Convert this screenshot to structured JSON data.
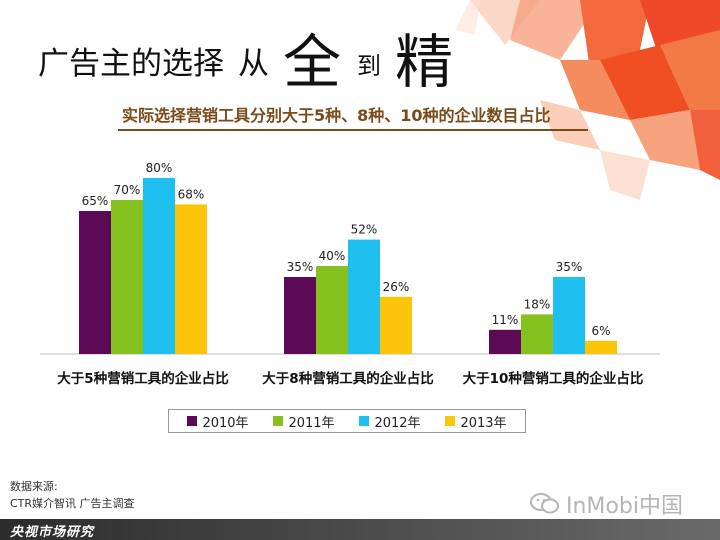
{
  "header": {
    "title_main": "广告主的选择",
    "title_from": "从",
    "title_quan": "全",
    "title_dao": "到",
    "title_jing": "精",
    "subtitle": "实际选择营销工具分别大于5种、8种、10种的企业数目占比"
  },
  "chart_data": {
    "type": "bar",
    "categories": [
      "大于5种营销工具的企业占比",
      "大于8种营销工具的企业占比",
      "大于10种营销工具的企业占比"
    ],
    "series": [
      {
        "name": "2010年",
        "color": "#5c0a55",
        "values": [
          65,
          35,
          11
        ],
        "labels": [
          "65%",
          "35%",
          "11%"
        ]
      },
      {
        "name": "2011年",
        "color": "#86c21f",
        "values": [
          70,
          40,
          18
        ],
        "labels": [
          "70%",
          "40%",
          "18%"
        ]
      },
      {
        "name": "2012年",
        "color": "#1fc0f0",
        "values": [
          80,
          52,
          35
        ],
        "labels": [
          "80%",
          "52%",
          "35%"
        ]
      },
      {
        "name": "2013年",
        "color": "#fcc50a",
        "values": [
          68,
          26,
          6
        ],
        "labels": [
          "68%",
          "26%",
          "6%"
        ]
      }
    ],
    "ylim": [
      0,
      80
    ],
    "legend_position": "bottom",
    "grid": false
  },
  "legend": [
    "2010年",
    "2011年",
    "2012年",
    "2013年"
  ],
  "source": {
    "label": "数据来源:",
    "text": "CTR媒介智讯 广告主调查"
  },
  "footer": {
    "brand": "央视市场研究"
  },
  "watermark": {
    "text": "InMobi中国"
  },
  "colors": {
    "accent": "#f04e23",
    "subtitle": "#7a4a1a"
  }
}
